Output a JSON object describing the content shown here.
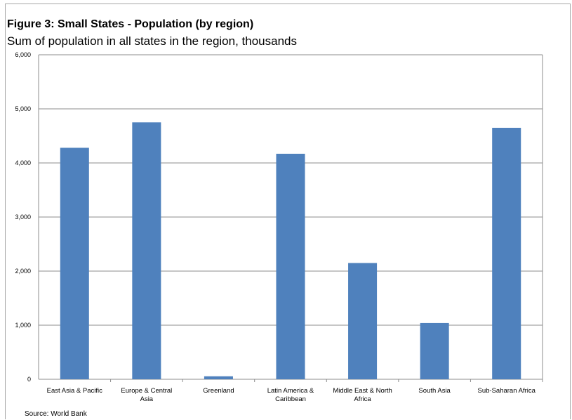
{
  "figure": {
    "title": "Figure 3: Small States - Population (by region)",
    "subtitle": "Sum of population in all states in the region, thousands",
    "source": "Source: World Bank"
  },
  "chart_data": {
    "type": "bar",
    "categories": [
      "East Asia & Pacific",
      "Europe & Central Asia",
      "Greenland",
      "Latin America & Caribbean",
      "Middle East & North Africa",
      "South Asia",
      "Sub-Saharan Africa"
    ],
    "category_label_lines": [
      [
        "East Asia & Pacific"
      ],
      [
        "Europe & Central",
        "Asia"
      ],
      [
        "Greenland"
      ],
      [
        "Latin America &",
        "Caribbean"
      ],
      [
        "Middle East & North",
        "Africa"
      ],
      [
        "South Asia"
      ],
      [
        "Sub-Saharan Africa"
      ]
    ],
    "values": [
      4280,
      4750,
      55,
      4170,
      2150,
      1040,
      4650
    ],
    "ylim": [
      0,
      6000
    ],
    "yticks": [
      0,
      1000,
      2000,
      3000,
      4000,
      5000,
      6000
    ],
    "ytick_labels": [
      "0",
      "1,000",
      "2,000",
      "3,000",
      "4,000",
      "5,000",
      "6,000"
    ],
    "grid": true,
    "bar_color": "#4f81bd",
    "gridline_color": "#8c8c8c"
  }
}
